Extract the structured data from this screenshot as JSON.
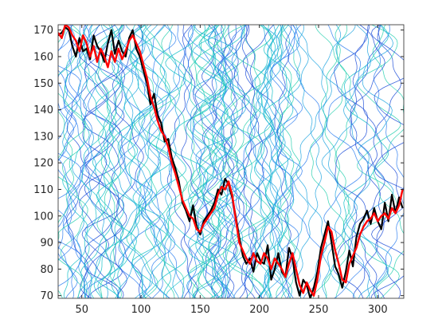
{
  "chart_data": {
    "type": "line",
    "title": "",
    "xlabel": "",
    "ylabel": "",
    "xlim": [
      30,
      322
    ],
    "ylim": [
      69,
      172
    ],
    "grid": false,
    "legend": "none",
    "x_ticks": [
      50,
      100,
      150,
      200,
      250,
      300
    ],
    "y_ticks": [
      70,
      80,
      90,
      100,
      110,
      120,
      130,
      140,
      150,
      160,
      170
    ],
    "background": {
      "kind": "contour",
      "colors": [
        "#1f4fd8",
        "#2f7ff0",
        "#22a6e0",
        "#12c0c8",
        "#2ad0b0"
      ]
    },
    "series": [
      {
        "color": "#000000",
        "x": [
          30,
          33,
          36,
          39,
          42,
          45,
          48,
          51,
          54,
          57,
          60,
          63,
          66,
          69,
          72,
          75,
          78,
          81,
          84,
          87,
          90,
          93,
          96,
          99,
          102,
          105,
          108,
          111,
          114,
          117,
          120,
          123,
          126,
          129,
          132,
          135,
          138,
          141,
          144,
          147,
          150,
          153,
          156,
          159,
          162,
          165,
          168,
          171,
          174,
          177,
          180,
          183,
          186,
          189,
          192,
          195,
          198,
          201,
          204,
          207,
          210,
          213,
          216,
          219,
          222,
          225,
          228,
          231,
          234,
          237,
          240,
          243,
          246,
          249,
          252,
          255,
          258,
          261,
          264,
          267,
          270,
          273,
          276,
          279,
          282,
          285,
          288,
          291,
          294,
          297,
          300,
          303,
          306,
          309,
          312,
          315,
          318,
          321
        ],
        "y": [
          168,
          169,
          171,
          170,
          164,
          160,
          167,
          162,
          163,
          159,
          168,
          164,
          162,
          158,
          165,
          170,
          161,
          166,
          162,
          160,
          167,
          170,
          163,
          160,
          155,
          150,
          142,
          146,
          138,
          135,
          128,
          129,
          122,
          118,
          113,
          105,
          102,
          98,
          104,
          96,
          93,
          98,
          100,
          102,
          105,
          110,
          108,
          114,
          112,
          107,
          100,
          92,
          85,
          82,
          84,
          79,
          86,
          83,
          82,
          89,
          76,
          80,
          86,
          79,
          77,
          88,
          84,
          75,
          70,
          76,
          74,
          69,
          73,
          79,
          88,
          93,
          98,
          90,
          81,
          78,
          73,
          79,
          87,
          81,
          92,
          97,
          99,
          102,
          97,
          103,
          98,
          95,
          105,
          98,
          108,
          101,
          107,
          103
        ]
      },
      {
        "color": "#ff0000",
        "x": [
          30,
          33,
          36,
          39,
          42,
          45,
          48,
          51,
          54,
          57,
          60,
          63,
          66,
          69,
          72,
          75,
          78,
          81,
          84,
          87,
          90,
          93,
          96,
          99,
          102,
          105,
          108,
          111,
          114,
          117,
          120,
          123,
          126,
          129,
          132,
          135,
          138,
          141,
          144,
          147,
          150,
          153,
          156,
          159,
          162,
          165,
          168,
          171,
          174,
          177,
          180,
          183,
          186,
          189,
          192,
          195,
          198,
          201,
          204,
          207,
          210,
          213,
          216,
          219,
          222,
          225,
          228,
          231,
          234,
          237,
          240,
          243,
          246,
          249,
          252,
          255,
          258,
          261,
          264,
          267,
          270,
          273,
          276,
          279,
          282,
          285,
          288,
          291,
          294,
          297,
          300,
          303,
          306,
          309,
          312,
          315,
          318,
          321
        ],
        "y": [
          169,
          167,
          172,
          171,
          168,
          166,
          162,
          168,
          165,
          160,
          164,
          158,
          163,
          160,
          156,
          162,
          158,
          163,
          159,
          162,
          166,
          168,
          165,
          162,
          157,
          152,
          145,
          141,
          136,
          132,
          130,
          126,
          120,
          116,
          111,
          106,
          103,
          100,
          99,
          95,
          94,
          97,
          99,
          101,
          103,
          108,
          111,
          110,
          113,
          108,
          99,
          90,
          87,
          84,
          82,
          86,
          83,
          82,
          86,
          84,
          80,
          84,
          82,
          80,
          77,
          82,
          86,
          80,
          74,
          71,
          75,
          72,
          70,
          76,
          85,
          90,
          96,
          94,
          87,
          82,
          76,
          75,
          82,
          85,
          88,
          93,
          96,
          98,
          99,
          101,
          98,
          100,
          101,
          99,
          103,
          101,
          104,
          110
        ]
      }
    ]
  }
}
